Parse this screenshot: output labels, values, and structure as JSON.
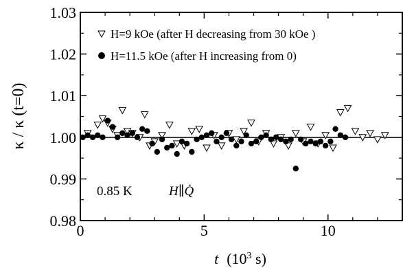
{
  "chart_data": {
    "type": "scatter",
    "xlabel_italic": "t",
    "xlabel_unit": "(10",
    "xlabel_exp": "3",
    "xlabel_tail": " s)",
    "ylabel": "κ / κ (t=0)",
    "xlim": [
      0,
      13
    ],
    "ylim": [
      0.98,
      1.03
    ],
    "x_ticks": [
      0,
      5,
      10
    ],
    "x_tick_labels": [
      "0",
      "5",
      "10"
    ],
    "y_ticks": [
      0.98,
      0.99,
      1.0,
      1.01,
      1.02,
      1.03
    ],
    "y_tick_labels": [
      "0.98",
      "0.99",
      "1.00",
      "1.01",
      "1.02",
      "1.03"
    ],
    "grid": false,
    "legend_position": "top",
    "reference_line_y": 1.0,
    "annotations": {
      "temperature": "0.85 K",
      "field_direction": "H∥Q̇"
    },
    "series": [
      {
        "name": "H=9 kOe (after H decreasing from 30 kOe )",
        "marker": "open-triangle-down",
        "points": [
          [
            0.3,
            1.001
          ],
          [
            0.7,
            1.003
          ],
          [
            0.9,
            1.0045
          ],
          [
            1.1,
            1.0035
          ],
          [
            1.3,
            1.002
          ],
          [
            1.5,
            1.0005
          ],
          [
            1.7,
            1.0065
          ],
          [
            1.9,
            1.0015
          ],
          [
            2.1,
            1.001
          ],
          [
            2.4,
            1.0
          ],
          [
            2.6,
            1.0055
          ],
          [
            2.8,
            0.998
          ],
          [
            3.0,
            0.999
          ],
          [
            3.3,
            1.0005
          ],
          [
            3.6,
            1.003
          ],
          [
            3.9,
            0.9985
          ],
          [
            4.2,
            0.998
          ],
          [
            4.5,
            1.0015
          ],
          [
            4.8,
            1.002
          ],
          [
            5.1,
            0.9975
          ],
          [
            5.4,
            1.0005
          ],
          [
            5.7,
            0.998
          ],
          [
            6.0,
            1.001
          ],
          [
            6.3,
            0.9995
          ],
          [
            6.6,
            1.0015
          ],
          [
            6.9,
            1.0035
          ],
          [
            7.2,
            0.999
          ],
          [
            7.5,
            1.001
          ],
          [
            7.8,
            0.9985
          ],
          [
            8.1,
            1.0
          ],
          [
            8.4,
            0.998
          ],
          [
            8.7,
            1.001
          ],
          [
            9.0,
            0.999
          ],
          [
            9.3,
            1.0025
          ],
          [
            9.6,
            0.9985
          ],
          [
            9.9,
            1.0005
          ],
          [
            10.2,
            0.9975
          ],
          [
            10.5,
            1.006
          ],
          [
            10.8,
            1.007
          ],
          [
            11.1,
            1.0015
          ],
          [
            11.4,
            1.0
          ],
          [
            11.7,
            1.001
          ],
          [
            12.0,
            0.9995
          ],
          [
            12.3,
            1.0005
          ]
        ]
      },
      {
        "name": "H=11.5 kOe (after H increasing from 0)",
        "marker": "filled-circle",
        "points": [
          [
            0.1,
            1.0
          ],
          [
            0.3,
            1.0005
          ],
          [
            0.5,
            1.0
          ],
          [
            0.7,
            1.0005
          ],
          [
            0.9,
            1.0
          ],
          [
            1.1,
            1.004
          ],
          [
            1.3,
            1.0025
          ],
          [
            1.5,
            1.0
          ],
          [
            1.7,
            1.001
          ],
          [
            1.9,
            1.0005
          ],
          [
            2.1,
            1.001
          ],
          [
            2.3,
            1.0
          ],
          [
            2.5,
            1.002
          ],
          [
            2.7,
            1.0015
          ],
          [
            2.9,
            0.9985
          ],
          [
            3.1,
            0.9965
          ],
          [
            3.3,
            0.9995
          ],
          [
            3.5,
            0.9975
          ],
          [
            3.7,
            0.998
          ],
          [
            3.9,
            0.996
          ],
          [
            4.1,
            0.999
          ],
          [
            4.3,
            0.9985
          ],
          [
            4.5,
            0.9965
          ],
          [
            4.7,
            0.9995
          ],
          [
            4.9,
            1.0
          ],
          [
            5.1,
            1.0005
          ],
          [
            5.3,
            1.001
          ],
          [
            5.5,
            0.999
          ],
          [
            5.7,
            1.0
          ],
          [
            5.9,
            1.001
          ],
          [
            6.1,
            0.9995
          ],
          [
            6.3,
            0.998
          ],
          [
            6.5,
            0.999
          ],
          [
            6.7,
            1.0005
          ],
          [
            6.9,
            0.9985
          ],
          [
            7.1,
            0.999
          ],
          [
            7.3,
            1.0
          ],
          [
            7.5,
            1.0005
          ],
          [
            7.7,
            0.9995
          ],
          [
            7.9,
            1.0
          ],
          [
            8.1,
            0.9995
          ],
          [
            8.3,
            0.999
          ],
          [
            8.5,
            0.9995
          ],
          [
            8.7,
            0.9925
          ],
          [
            8.9,
            0.9995
          ],
          [
            9.1,
            0.9985
          ],
          [
            9.3,
            0.999
          ],
          [
            9.5,
            0.9985
          ],
          [
            9.7,
            0.999
          ],
          [
            9.9,
            0.998
          ],
          [
            10.1,
            0.999
          ],
          [
            10.3,
            1.002
          ],
          [
            10.5,
            1.0005
          ],
          [
            10.7,
            1.0
          ]
        ]
      }
    ]
  }
}
